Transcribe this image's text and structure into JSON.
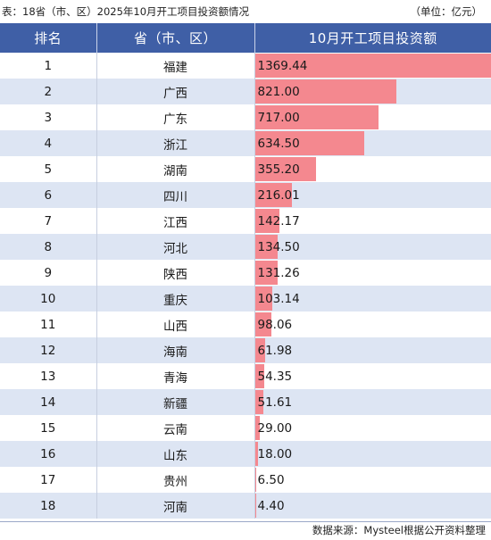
{
  "caption": {
    "title": "表：18省（市、区）2025年10月开工项目投资额情况",
    "unit": "（单位：亿元）"
  },
  "table": {
    "headers": [
      "排名",
      "省（市、区）",
      "10月开工项目投资额"
    ],
    "rows": [
      {
        "rank": "1",
        "province": "福建",
        "value": "1369.44"
      },
      {
        "rank": "2",
        "province": "广西",
        "value": "821.00"
      },
      {
        "rank": "3",
        "province": "广东",
        "value": "717.00"
      },
      {
        "rank": "4",
        "province": "浙江",
        "value": "634.50"
      },
      {
        "rank": "5",
        "province": "湖南",
        "value": "355.20"
      },
      {
        "rank": "6",
        "province": "四川",
        "value": "216.01"
      },
      {
        "rank": "7",
        "province": "江西",
        "value": "142.17"
      },
      {
        "rank": "8",
        "province": "河北",
        "value": "134.50"
      },
      {
        "rank": "9",
        "province": "陕西",
        "value": "131.26"
      },
      {
        "rank": "10",
        "province": "重庆",
        "value": "103.14"
      },
      {
        "rank": "11",
        "province": "山西",
        "value": "98.06"
      },
      {
        "rank": "12",
        "province": "海南",
        "value": "61.98"
      },
      {
        "rank": "13",
        "province": "青海",
        "value": "54.35"
      },
      {
        "rank": "14",
        "province": "新疆",
        "value": "51.61"
      },
      {
        "rank": "15",
        "province": "云南",
        "value": "29.00"
      },
      {
        "rank": "16",
        "province": "山东",
        "value": "18.00"
      },
      {
        "rank": "17",
        "province": "贵州",
        "value": "6.50"
      },
      {
        "rank": "18",
        "province": "河南",
        "value": "4.40"
      }
    ]
  },
  "colors": {
    "header_bg": "#3f5fa6",
    "stripe": "#dde5f3",
    "bar": "#f4888f"
  },
  "source": "数据来源：Mysteel根据公开资料整理"
}
